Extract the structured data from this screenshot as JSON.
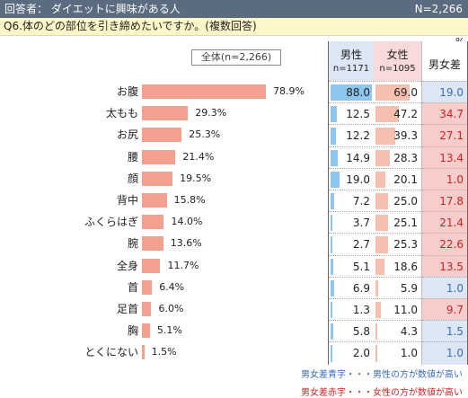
{
  "header": {
    "title": "回答者： ダイエットに興味がある人",
    "n": "N=2,266"
  },
  "question": "Q6.体のどの部位を引き締めたいですか。(複数回答)",
  "unit": "%",
  "overall_label": "全体(n=2,266)",
  "columns": {
    "male_label": "男性",
    "male_n": "n=1171",
    "female_label": "女性",
    "female_n": "n=1095",
    "diff_label": "男女差"
  },
  "colors": {
    "bar": "#f4a090",
    "male_bar": "#8ec6f0",
    "female_bar": "#f6c0b0",
    "blue_text": "#3a6cb8",
    "red_text": "#cc2222",
    "diff_blue_bg": "#dde6f5",
    "diff_red_bg": "#f9cccc"
  },
  "chart_data": {
    "type": "bar",
    "categories": [
      "お腹",
      "太もも",
      "お尻",
      "腰",
      "顔",
      "背中",
      "ふくらはぎ",
      "腕",
      "全身",
      "首",
      "足首",
      "胸",
      "とくにない"
    ],
    "values": [
      78.9,
      29.3,
      25.3,
      21.4,
      19.5,
      15.8,
      14.0,
      13.6,
      11.7,
      6.4,
      6.0,
      5.1,
      1.5
    ],
    "value_labels": [
      "78.9%",
      "29.3%",
      "25.3%",
      "21.4%",
      "19.5%",
      "15.8%",
      "14.0%",
      "13.6%",
      "11.7%",
      "6.4%",
      "6.0%",
      "5.1%",
      "1.5%"
    ],
    "male": [
      "88.0",
      "12.5",
      "12.2",
      "14.9",
      "19.0",
      "7.2",
      "3.7",
      "2.7",
      "5.1",
      "6.9",
      "1.3",
      "5.8",
      "2.0"
    ],
    "female": [
      "69.0",
      "47.2",
      "39.3",
      "28.3",
      "20.1",
      "25.0",
      "25.1",
      "25.3",
      "18.6",
      "5.9",
      "11.0",
      "4.3",
      "1.0"
    ],
    "diff": [
      "19.0",
      "34.7",
      "27.1",
      "13.4",
      "1.0",
      "17.8",
      "21.4",
      "22.6",
      "13.5",
      "1.0",
      "9.7",
      "1.5",
      "1.0"
    ],
    "diff_side": [
      "m",
      "f",
      "f",
      "f",
      "f",
      "f",
      "f",
      "f",
      "f",
      "m",
      "f",
      "m",
      "m"
    ]
  },
  "notes": {
    "blue": "男女差青字・・・男性の方が数値が高い",
    "red": "男女差赤字・・・女性の方が数値が高い"
  }
}
